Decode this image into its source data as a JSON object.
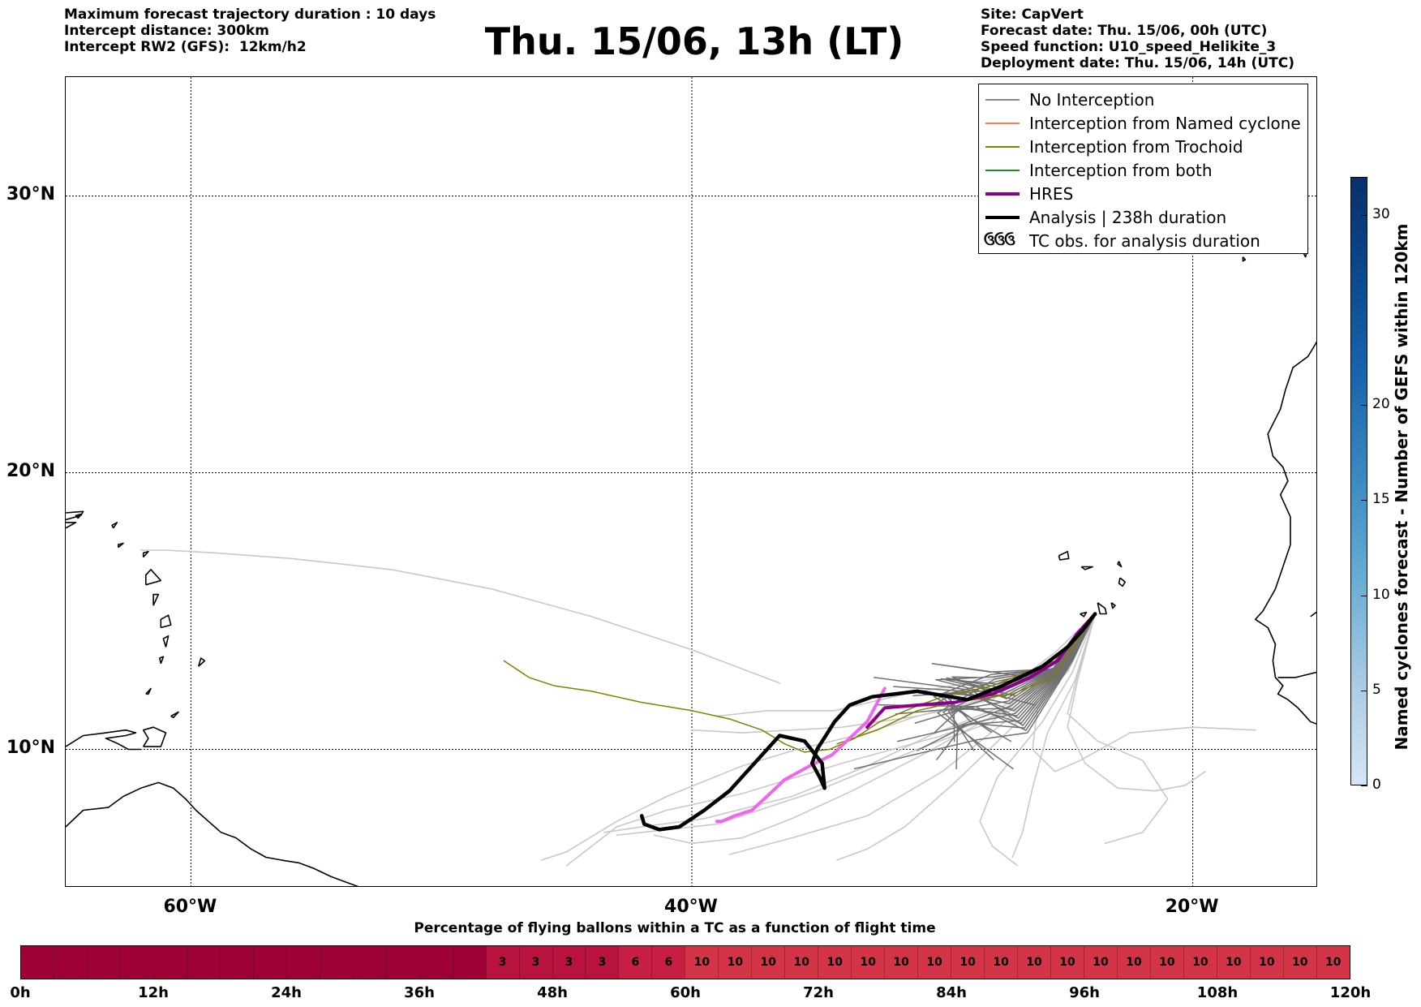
{
  "header": {
    "left_lines": [
      "Maximum forecast trajectory duration : 10 days",
      "Intercept distance: 300km",
      "Intercept RW2 (GFS):  12km/h2"
    ],
    "title": "Thu. 15/06, 13h (LT)",
    "right_lines": [
      "Site: CapVert",
      "Forecast date: Thu. 15/06, 00h (UTC)",
      "Speed function: U10_speed_Helikite_3",
      "Deployment date: Thu. 15/06, 14h (UTC)"
    ]
  },
  "map": {
    "lon_range": [
      -65,
      -15
    ],
    "lat_range": [
      5,
      34.3
    ],
    "lat_labels": [
      "30°N",
      "20°N",
      "10°N"
    ],
    "lat_values": [
      30,
      20,
      10
    ],
    "lon_labels": [
      "60°W",
      "40°W",
      "20°W"
    ],
    "lon_values": [
      -60,
      -40,
      -20
    ],
    "launch_site": {
      "lon": -23.9,
      "lat": 14.9
    }
  },
  "legend": {
    "items": [
      {
        "label": "No Interception",
        "color": "#888888"
      },
      {
        "label": "Interception from Named cyclone",
        "color": "#ff7f50"
      },
      {
        "label": "Interception from Trochoid",
        "color": "#808000"
      },
      {
        "label": "Interception from both",
        "color": "#228b22"
      },
      {
        "label": "HRES",
        "color": "#8b008b"
      },
      {
        "label": "Analysis | 238h duration",
        "color": "#000000"
      }
    ],
    "glyph_item": {
      "glyph": "ઉઉઉ",
      "label": "TC obs. for analysis duration"
    }
  },
  "colorbar": {
    "label": "Named cyclones forecast - Number of GEFS within 120km",
    "ticks": [
      "0",
      "5",
      "10",
      "15",
      "20",
      "30"
    ],
    "tick_values": [
      0,
      5,
      10,
      15,
      20,
      30
    ],
    "max": 32,
    "colors": [
      "#d6e5f4",
      "#a9cbe3",
      "#6aaed6",
      "#3b8bc2",
      "#1a66ad",
      "#0b4a91",
      "#08306b"
    ]
  },
  "time_bar": {
    "title": "Percentage of flying ballons within a TC as a function of flight time",
    "labels": [
      "0h",
      "12h",
      "24h",
      "36h",
      "48h",
      "60h",
      "72h",
      "84h",
      "96h",
      "108h",
      "120h"
    ],
    "cells": [
      "",
      "",
      "",
      "",
      "",
      "",
      "",
      "",
      "",
      "",
      "",
      "",
      "",
      "",
      "3",
      "3",
      "3",
      "3",
      "6",
      "6",
      "10",
      "10",
      "10",
      "10",
      "10",
      "10",
      "10",
      "10",
      "10",
      "10",
      "10",
      "10",
      "10",
      "10",
      "10",
      "10",
      "10",
      "10",
      "10",
      "10"
    ],
    "colors": {
      "0": "#9e0038",
      "3": "#b8133f",
      "6": "#c71f44",
      "10": "#d43448"
    }
  }
}
